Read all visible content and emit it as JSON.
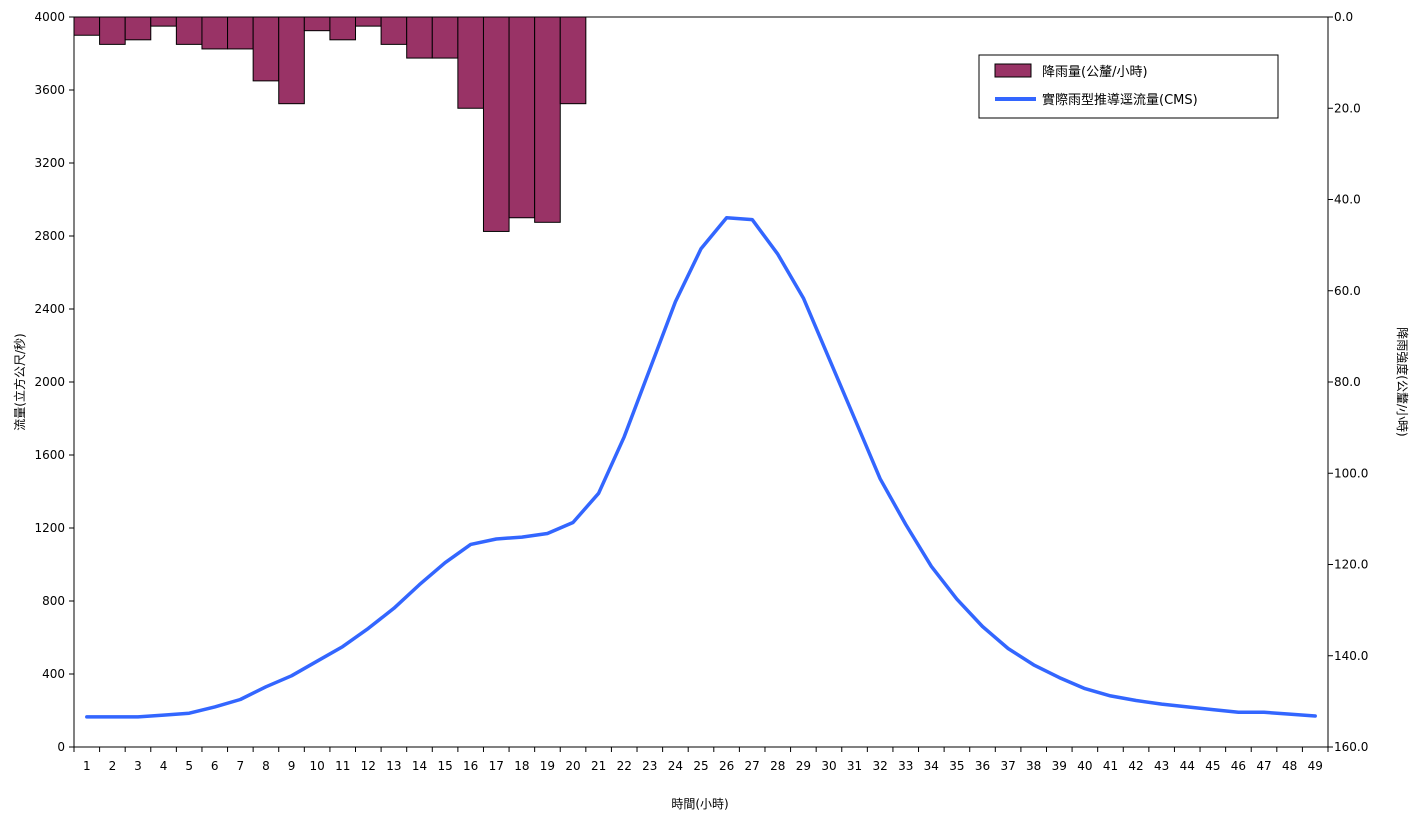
{
  "chart_data": {
    "type": "bar+line",
    "title": "",
    "xlabel": "時間(小時)",
    "ylabel_left": "流量(立方公尺/秒)",
    "ylabel_right": "降雨強度(公釐/小時)",
    "x": [
      1,
      2,
      3,
      4,
      5,
      6,
      7,
      8,
      9,
      10,
      11,
      12,
      13,
      14,
      15,
      16,
      17,
      18,
      19,
      20,
      21,
      22,
      23,
      24,
      25,
      26,
      27,
      28,
      29,
      30,
      31,
      32,
      33,
      34,
      35,
      36,
      37,
      38,
      39,
      40,
      41,
      42,
      43,
      44,
      45,
      46,
      47,
      48,
      49
    ],
    "ylim_left": [
      0,
      4000
    ],
    "yticks_left": [
      "0",
      "400",
      "800",
      "1200",
      "1600",
      "2000",
      "2400",
      "2800",
      "3200",
      "3600",
      "4000"
    ],
    "ylim_right_inverted": [
      0.0,
      160.0
    ],
    "yticks_right": [
      "0.0",
      "20.0",
      "40.0",
      "60.0",
      "80.0",
      "100.0",
      "120.0",
      "140.0",
      "160.0"
    ],
    "grid": false,
    "legend_position": "top-right",
    "series": [
      {
        "name": "降雨量(公釐/小時)",
        "kind": "bar",
        "axis": "right",
        "color": "#993366",
        "values": [
          4,
          6,
          5,
          2,
          6,
          7,
          7,
          14,
          19,
          3,
          5,
          2,
          6,
          9,
          9,
          20,
          47,
          44,
          45,
          19,
          0,
          0,
          0,
          0,
          0,
          0,
          0,
          0,
          0,
          0,
          0,
          0,
          0,
          0,
          0,
          0,
          0,
          0,
          0,
          0,
          0,
          0,
          0,
          0,
          0,
          0,
          0,
          0,
          0
        ]
      },
      {
        "name": "實際雨型推導逕流量(CMS)",
        "kind": "line",
        "axis": "left",
        "color": "#3366ff",
        "values": [
          165,
          165,
          165,
          175,
          185,
          220,
          260,
          330,
          390,
          470,
          550,
          650,
          760,
          890,
          1010,
          1110,
          1140,
          1150,
          1170,
          1230,
          1390,
          1700,
          2070,
          2440,
          2730,
          2900,
          2890,
          2700,
          2460,
          2130,
          1800,
          1470,
          1220,
          990,
          810,
          660,
          540,
          450,
          380,
          320,
          280,
          255,
          235,
          220,
          205,
          190,
          190,
          180,
          170
        ]
      }
    ]
  }
}
